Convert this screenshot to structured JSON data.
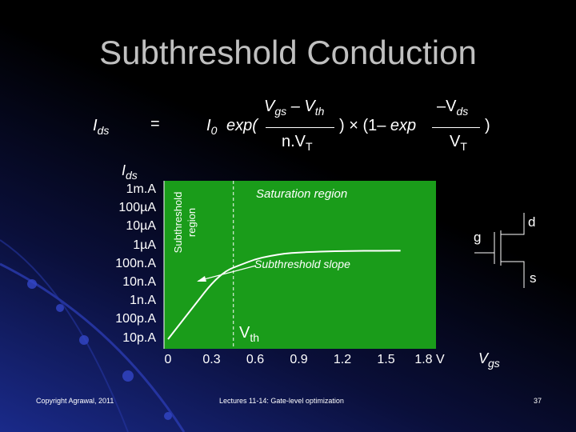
{
  "title": "Subthreshold Conduction",
  "equation": {
    "lhs": "I",
    "lhs_sub": "ds",
    "equals": "=",
    "i0": "I",
    "i0_sub": "0",
    "exp_open": "exp(",
    "num1_a": "V",
    "num1_a_sub": "gs",
    "num1_minus": "– V",
    "num1_b_sub": "th",
    "den1": "n.V",
    "den1_sub": "T",
    "mid": ") × (1– exp",
    "num2": "–V",
    "num2_sub": "ds",
    "den2": "V",
    "den2_sub": "T",
    "close": ")"
  },
  "chart_data": {
    "type": "line",
    "ylabel": "I",
    "ylabel_sub": "ds",
    "y_ticks": [
      "1m.A",
      "100µA",
      "10µA",
      "1µA",
      "100n.A",
      "10n.A",
      "1n.A",
      "100p.A",
      "10p.A"
    ],
    "x_ticks": [
      "0",
      "0.3",
      "0.6",
      "0.9",
      "1.2",
      "1.5",
      "1.8 V"
    ],
    "xlabel": "V",
    "xlabel_sub": "gs",
    "xlim": [
      0,
      1.8
    ],
    "series": [
      {
        "x": [
          0.0,
          0.1,
          0.2,
          0.3,
          0.4,
          0.5,
          0.6,
          0.7,
          0.8,
          0.9,
          1.0,
          1.1,
          1.2,
          1.3,
          1.4,
          1.5,
          1.6
        ],
        "y": [
          "1e-11",
          "1e-10",
          "1e-9",
          "1e-8",
          "5e-8",
          "1e-7",
          "2e-7",
          "3e-7",
          "4e-7",
          "4.6e-7",
          "5e-7",
          "5.3e-7",
          "5.5e-7",
          "5.6e-7",
          "5.65e-7",
          "5.7e-7",
          "5.7e-7"
        ]
      }
    ],
    "vth_label": "V",
    "vth_sub": "th",
    "vth_x": 0.45,
    "annotations": {
      "subthreshold_region": [
        "Subthreshold",
        "region"
      ],
      "saturation_region": "Saturation region",
      "subthreshold_slope": "Subthreshold slope"
    },
    "plot_bg": "#1a9c1a"
  },
  "transistor": {
    "g": "g",
    "d": "d",
    "s": "s"
  },
  "footer": {
    "left": "Copyright Agrawal, 2011",
    "center": "Lectures 11-14: Gate-level optimization",
    "page": "37"
  }
}
